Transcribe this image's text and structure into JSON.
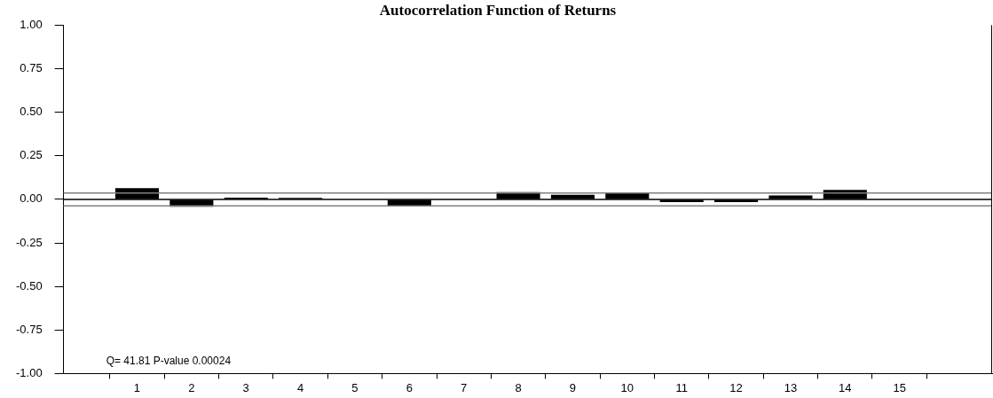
{
  "chart_data": {
    "type": "bar",
    "title": "Autocorrelation Function of Returns",
    "x": [
      1,
      2,
      3,
      4,
      5,
      6,
      7,
      8,
      9,
      10,
      11,
      12,
      13,
      14,
      15
    ],
    "values": [
      0.064,
      -0.042,
      0.01,
      0.009,
      0,
      -0.04,
      0,
      0.042,
      0.026,
      0.037,
      -0.016,
      -0.016,
      0.022,
      0.054,
      0
    ],
    "color": "#000000",
    "xlim": [
      -0.35,
      16.7
    ],
    "xticks": [
      1,
      2,
      3,
      4,
      5,
      6,
      7,
      8,
      9,
      10,
      11,
      12,
      13,
      14,
      15
    ],
    "ylim": [
      -1,
      1
    ],
    "yticks": [
      {
        "value": -1,
        "label": "-1.00"
      },
      {
        "value": -0.75,
        "label": "-0.75"
      },
      {
        "value": -0.5,
        "label": "-0.50"
      },
      {
        "value": -0.25,
        "label": "-0.25"
      },
      {
        "value": 0,
        "label": "0.00"
      },
      {
        "value": 0.25,
        "label": "0.25"
      },
      {
        "value": 0.5,
        "label": "0.50"
      },
      {
        "value": 0.75,
        "label": "0.75"
      },
      {
        "value": 1,
        "label": "1.00"
      }
    ],
    "ref_lines": [
      {
        "axis": "y",
        "value": 0,
        "color": "#000000"
      },
      {
        "axis": "y",
        "value": 0.037,
        "color": "#808080"
      },
      {
        "axis": "y",
        "value": -0.037,
        "color": "#808080"
      }
    ],
    "annotations": [
      "Q= 41.81 P-value 0.00024"
    ],
    "grid": false,
    "legend": false
  }
}
